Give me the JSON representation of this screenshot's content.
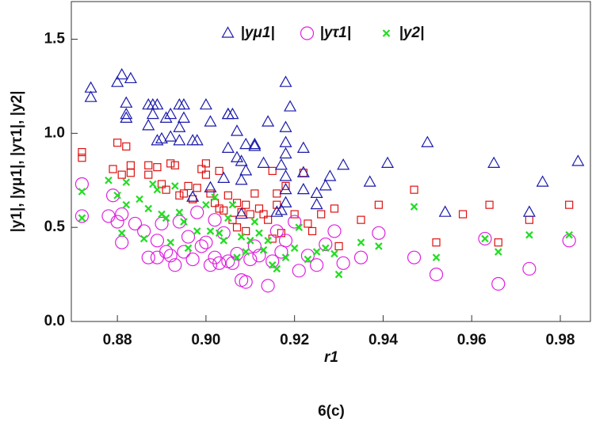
{
  "chart_data": {
    "type": "scatter",
    "ylabel": "|y1|, |yμ1|, |yτ1|, |y2|",
    "xlabel": "r1",
    "caption": "6(c)",
    "xlim": [
      0.8696,
      0.9868
    ],
    "ylim": [
      0,
      1.7
    ],
    "xticks": [
      0.88,
      {
        "value": 0.9,
        "label": "0.90"
      },
      0.92,
      0.94,
      0.96,
      0.98
    ],
    "yticks": [
      {
        "value": 0,
        "label": "0.0"
      },
      0.5,
      {
        "value": 1,
        "label": "1.0"
      },
      1.5
    ],
    "legend": "top",
    "series": [
      {
        "color": "#dd1111",
        "marker": "square",
        "x": [
          0.872,
          0.872,
          0.879,
          0.88,
          0.882,
          0.881,
          0.883,
          0.883,
          0.887,
          0.887,
          0.889,
          0.89,
          0.891,
          0.892,
          0.893,
          0.894,
          0.895,
          0.896,
          0.897,
          0.898,
          0.899,
          0.9,
          0.9,
          0.901,
          0.902,
          0.903,
          0.903,
          0.904,
          0.905,
          0.906,
          0.907,
          0.907,
          0.908,
          0.909,
          0.909,
          0.91,
          0.911,
          0.912,
          0.913,
          0.914,
          0.915,
          0.915,
          0.916,
          0.916,
          0.917,
          0.918,
          0.92,
          0.922,
          0.923,
          0.924,
          0.926,
          0.929,
          0.93,
          0.935,
          0.939,
          0.947,
          0.952,
          0.958,
          0.964,
          0.966,
          0.973,
          0.982
        ],
        "values": [
          0.9,
          0.87,
          0.81,
          0.95,
          0.93,
          0.78,
          0.79,
          0.83,
          0.83,
          0.78,
          0.82,
          0.73,
          0.7,
          0.84,
          0.83,
          0.67,
          0.68,
          0.72,
          0.65,
          0.71,
          0.81,
          0.84,
          0.78,
          0.68,
          0.63,
          0.8,
          0.6,
          0.59,
          0.67,
          0.54,
          0.63,
          0.5,
          0.58,
          0.48,
          0.62,
          0.57,
          0.68,
          0.6,
          0.57,
          0.54,
          0.44,
          0.8,
          0.68,
          0.62,
          0.47,
          0.72,
          0.57,
          0.79,
          0.52,
          0.48,
          0.57,
          0.6,
          0.4,
          0.54,
          0.62,
          0.7,
          0.42,
          0.57,
          0.62,
          0.42,
          0.54,
          0.62
        ]
      },
      {
        "name": "|yμ1|",
        "color": "#1a1aaa",
        "marker": "triangle",
        "x": [
          0.874,
          0.874,
          0.88,
          0.881,
          0.883,
          0.882,
          0.882,
          0.882,
          0.887,
          0.888,
          0.889,
          0.891,
          0.892,
          0.894,
          0.895,
          0.894,
          0.895,
          0.888,
          0.887,
          0.889,
          0.89,
          0.892,
          0.894,
          0.897,
          0.898,
          0.9,
          0.901,
          0.905,
          0.905,
          0.907,
          0.906,
          0.905,
          0.907,
          0.909,
          0.911,
          0.911,
          0.908,
          0.908,
          0.909,
          0.913,
          0.917,
          0.918,
          0.919,
          0.918,
          0.918,
          0.918,
          0.918,
          0.918,
          0.917,
          0.918,
          0.914,
          0.922,
          0.922,
          0.922,
          0.925,
          0.925,
          0.927,
          0.928,
          0.931,
          0.941,
          0.937,
          0.95,
          0.954,
          0.965,
          0.973,
          0.976,
          0.984,
          0.916,
          0.908,
          0.901,
          0.897,
          0.904
        ],
        "values": [
          1.24,
          1.19,
          1.27,
          1.31,
          1.29,
          1.16,
          1.1,
          1.08,
          1.15,
          1.15,
          1.15,
          1.08,
          1.1,
          1.15,
          1.08,
          1.03,
          1.15,
          1.1,
          1.04,
          0.96,
          0.97,
          0.98,
          0.96,
          0.96,
          0.96,
          1.15,
          1.06,
          1.1,
          1.1,
          1.01,
          1.1,
          0.92,
          0.87,
          0.94,
          0.94,
          0.93,
          0.75,
          0.85,
          0.8,
          0.84,
          0.83,
          1.27,
          1.14,
          1.03,
          0.95,
          0.89,
          0.7,
          0.63,
          0.59,
          0.77,
          1.06,
          0.92,
          0.7,
          0.79,
          0.68,
          0.62,
          0.72,
          0.77,
          0.83,
          0.84,
          0.74,
          0.95,
          0.58,
          0.84,
          0.58,
          0.74,
          0.85,
          0.58,
          0.57,
          0.71,
          0.66,
          0.76
        ]
      },
      {
        "name": "|yτ1|",
        "color": "#e020e0",
        "marker": "circle",
        "x": [
          0.872,
          0.872,
          0.878,
          0.879,
          0.88,
          0.881,
          0.881,
          0.884,
          0.886,
          0.887,
          0.889,
          0.889,
          0.89,
          0.891,
          0.892,
          0.893,
          0.894,
          0.895,
          0.896,
          0.897,
          0.898,
          0.899,
          0.9,
          0.901,
          0.902,
          0.902,
          0.903,
          0.904,
          0.905,
          0.906,
          0.907,
          0.908,
          0.909,
          0.91,
          0.911,
          0.912,
          0.914,
          0.915,
          0.916,
          0.917,
          0.918,
          0.92,
          0.921,
          0.923,
          0.925,
          0.927,
          0.929,
          0.931,
          0.935,
          0.939,
          0.947,
          0.952,
          0.963,
          0.966,
          0.973,
          0.982
        ],
        "values": [
          0.73,
          0.56,
          0.56,
          0.67,
          0.53,
          0.57,
          0.42,
          0.52,
          0.48,
          0.34,
          0.34,
          0.43,
          0.52,
          0.37,
          0.35,
          0.3,
          0.53,
          0.37,
          0.45,
          0.33,
          0.58,
          0.4,
          0.42,
          0.3,
          0.34,
          0.54,
          0.31,
          0.47,
          0.32,
          0.31,
          0.36,
          0.22,
          0.21,
          0.33,
          0.4,
          0.35,
          0.19,
          0.32,
          0.48,
          0.37,
          0.43,
          0.53,
          0.27,
          0.35,
          0.3,
          0.41,
          0.48,
          0.31,
          0.34,
          0.47,
          0.34,
          0.25,
          0.44,
          0.2,
          0.28,
          0.43
        ]
      },
      {
        "name": "|y2|",
        "color": "#22dd22",
        "marker": "x",
        "x": [
          0.872,
          0.872,
          0.878,
          0.88,
          0.881,
          0.882,
          0.882,
          0.885,
          0.886,
          0.887,
          0.888,
          0.889,
          0.89,
          0.891,
          0.892,
          0.893,
          0.894,
          0.895,
          0.896,
          0.898,
          0.9,
          0.901,
          0.902,
          0.903,
          0.904,
          0.905,
          0.906,
          0.907,
          0.908,
          0.909,
          0.91,
          0.911,
          0.912,
          0.913,
          0.914,
          0.915,
          0.916,
          0.918,
          0.92,
          0.921,
          0.923,
          0.925,
          0.927,
          0.929,
          0.93,
          0.935,
          0.939,
          0.947,
          0.952,
          0.963,
          0.966,
          0.973,
          0.982
        ],
        "values": [
          0.69,
          0.55,
          0.75,
          0.67,
          0.47,
          0.62,
          0.74,
          0.65,
          0.44,
          0.6,
          0.73,
          0.7,
          0.57,
          0.55,
          0.42,
          0.72,
          0.58,
          0.53,
          0.39,
          0.48,
          0.62,
          0.48,
          0.66,
          0.47,
          0.43,
          0.55,
          0.62,
          0.34,
          0.45,
          0.37,
          0.43,
          0.53,
          0.47,
          0.38,
          0.43,
          0.3,
          0.28,
          0.34,
          0.39,
          0.5,
          0.33,
          0.37,
          0.39,
          0.36,
          0.25,
          0.42,
          0.4,
          0.61,
          0.34,
          0.44,
          0.37,
          0.46,
          0.46
        ]
      }
    ]
  }
}
